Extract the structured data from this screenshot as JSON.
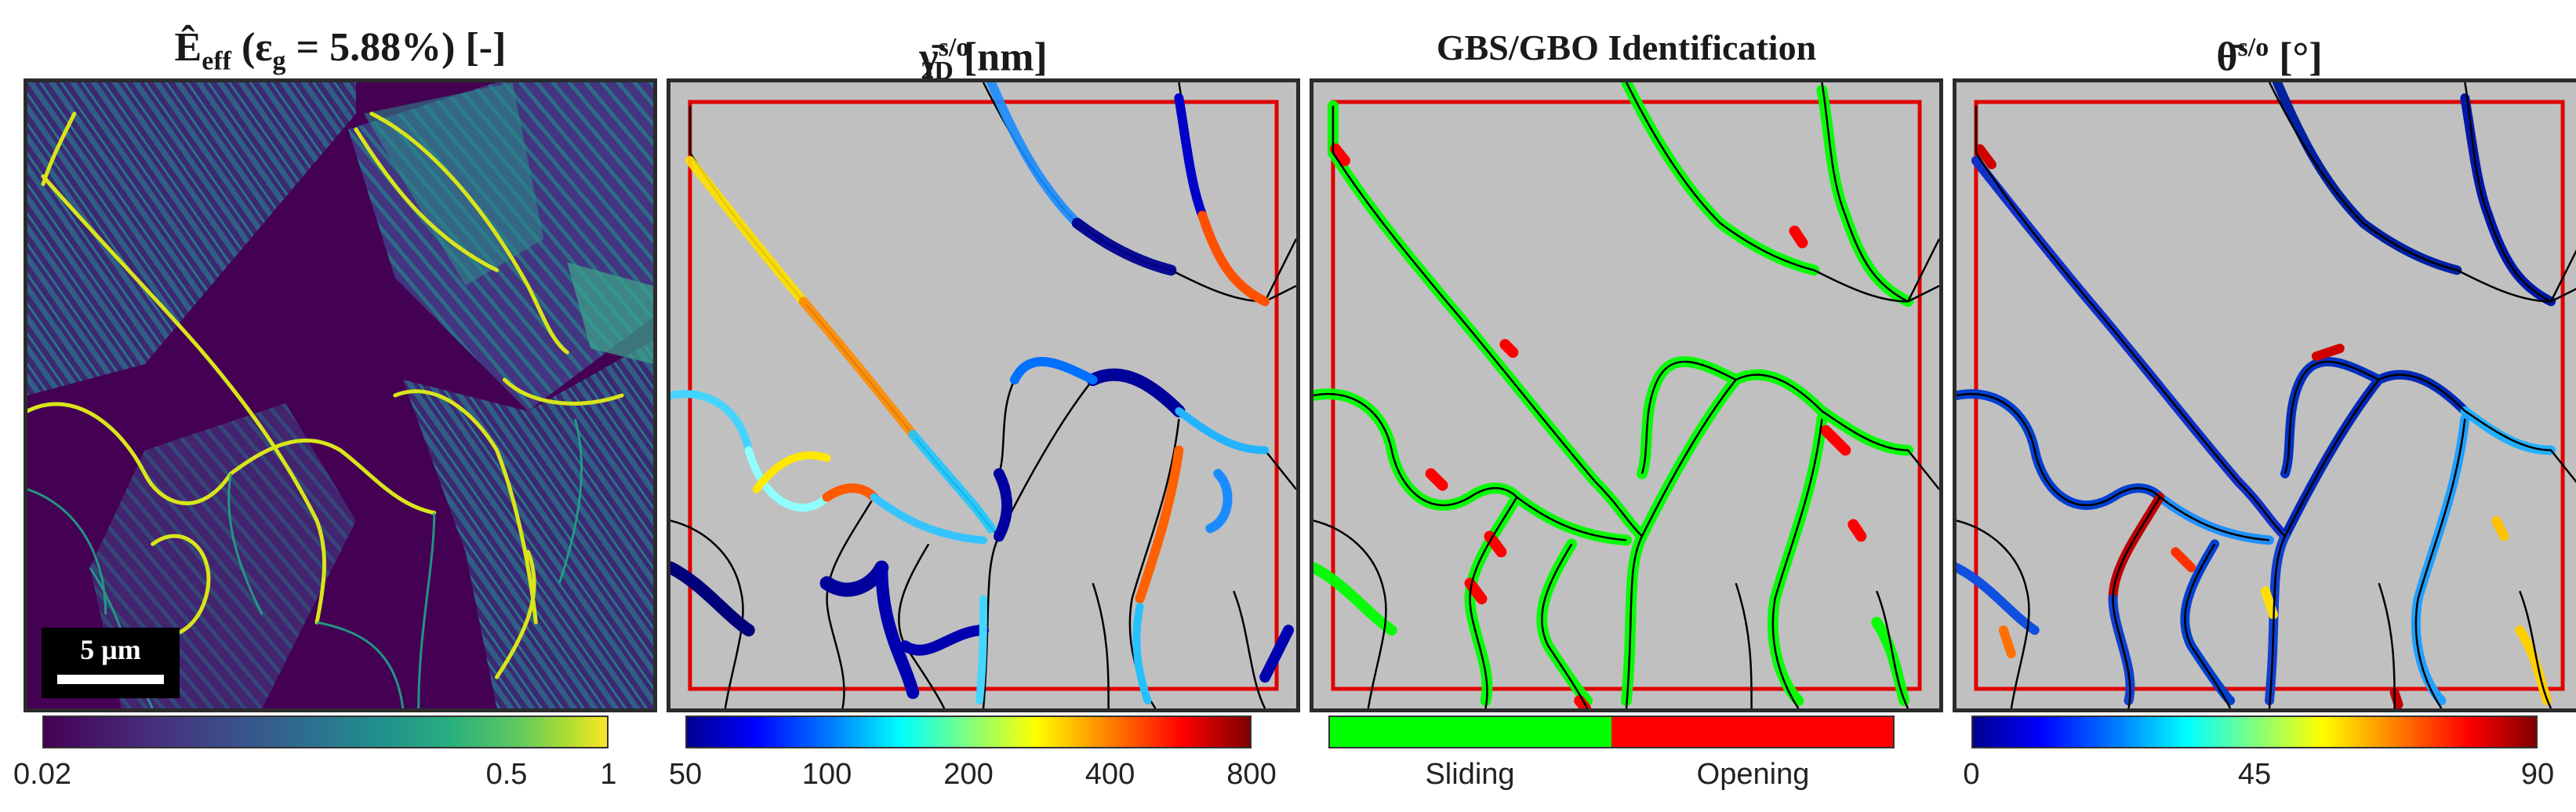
{
  "panels": [
    {
      "title_main": "Ê",
      "title_sub": "eff",
      "title_rest": " (ε",
      "title_sub2": "g",
      "title_end": " = 5.88%) [-]",
      "colorbar_ticks": [
        "0.02",
        "0.5",
        "1"
      ],
      "scalebar_label": "5 μm",
      "colormap": "viridis"
    },
    {
      "title_main": "γ̄",
      "title_sup": "s/o",
      "title_sub": "2D",
      "title_end": " [nm]",
      "colorbar_ticks": [
        "50",
        "100",
        "200",
        "400",
        "800"
      ],
      "colormap": "jet"
    },
    {
      "title_main": "GBS/GBO Identification",
      "categories": [
        {
          "label": "Sliding",
          "color": "#00ff00"
        },
        {
          "label": "Opening",
          "color": "#ff0000"
        }
      ]
    },
    {
      "title_main": "θ̄",
      "title_sup": "s/o",
      "title_end": " [°]",
      "colorbar_ticks": [
        "0",
        "45",
        "90"
      ],
      "colormap": "jet"
    }
  ],
  "colors": {
    "background_gray": "#c0c0c0",
    "roi_box": "#e00000",
    "boundary_line": "#000000",
    "viridis_dark": "#440154",
    "viridis_yellow": "#fde725"
  }
}
